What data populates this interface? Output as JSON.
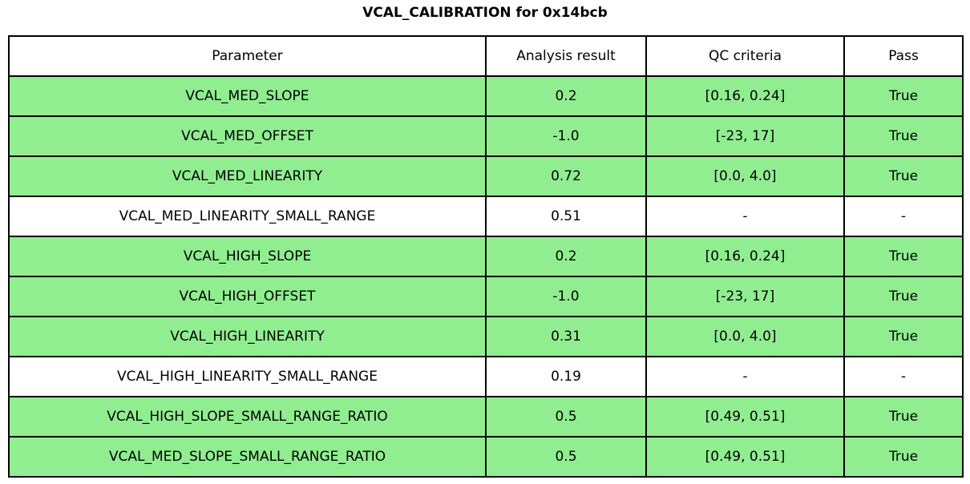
{
  "title": "VCAL_CALIBRATION for 0x14bcb",
  "colors": {
    "pass_row_bg": "#90EE90",
    "plain_row_bg": "#FFFFFF",
    "header_bg": "#FFFFFF",
    "border": "#000000",
    "text": "#000000"
  },
  "chart_data": {
    "type": "table",
    "title": "VCAL_CALIBRATION for 0x14bcb",
    "columns": [
      "Parameter",
      "Analysis result",
      "QC criteria",
      "Pass"
    ],
    "rows": [
      {
        "cells": [
          "VCAL_MED_SLOPE",
          "0.2",
          "[0.16, 0.24]",
          "True"
        ],
        "highlight": true
      },
      {
        "cells": [
          "VCAL_MED_OFFSET",
          "-1.0",
          "[-23, 17]",
          "True"
        ],
        "highlight": true
      },
      {
        "cells": [
          "VCAL_MED_LINEARITY",
          "0.72",
          "[0.0, 4.0]",
          "True"
        ],
        "highlight": true
      },
      {
        "cells": [
          "VCAL_MED_LINEARITY_SMALL_RANGE",
          "0.51",
          "-",
          "-"
        ],
        "highlight": false
      },
      {
        "cells": [
          "VCAL_HIGH_SLOPE",
          "0.2",
          "[0.16, 0.24]",
          "True"
        ],
        "highlight": true
      },
      {
        "cells": [
          "VCAL_HIGH_OFFSET",
          "-1.0",
          "[-23, 17]",
          "True"
        ],
        "highlight": true
      },
      {
        "cells": [
          "VCAL_HIGH_LINEARITY",
          "0.31",
          "[0.0, 4.0]",
          "True"
        ],
        "highlight": true
      },
      {
        "cells": [
          "VCAL_HIGH_LINEARITY_SMALL_RANGE",
          "0.19",
          "-",
          "-"
        ],
        "highlight": false
      },
      {
        "cells": [
          "VCAL_HIGH_SLOPE_SMALL_RANGE_RATIO",
          "0.5",
          "[0.49, 0.51]",
          "True"
        ],
        "highlight": true
      },
      {
        "cells": [
          "VCAL_MED_SLOPE_SMALL_RANGE_RATIO",
          "0.5",
          "[0.49, 0.51]",
          "True"
        ],
        "highlight": true
      }
    ]
  }
}
